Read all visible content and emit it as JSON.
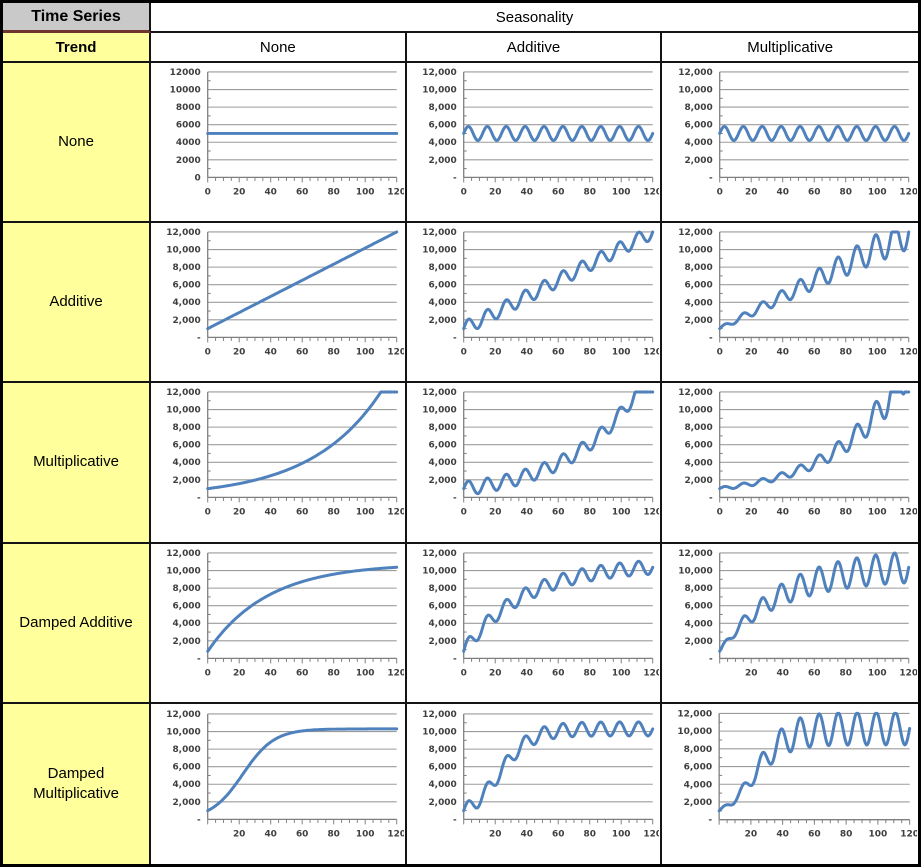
{
  "table": {
    "corner_title": "Time Series",
    "trend_label": "Trend",
    "seasonality_label": "Seasonality",
    "column_headers": [
      "None",
      "Additive",
      "Multiplicative"
    ],
    "row_headers": [
      "None",
      "Additive",
      "Multiplicative",
      "Damped Additive",
      "Damped Multiplicative"
    ]
  },
  "colors": {
    "line": "#4F81BD",
    "grid": "#9b9b9b",
    "axis": "#7f7f7f",
    "tick_text": "#3f3f3f",
    "row_header_bg": "#ffff9c",
    "corner_bg": "#c9c9c9",
    "corner_divider": "#70342f"
  },
  "chart_data": [
    {
      "type": "line",
      "trend_row": "None",
      "seasonality_col": "None",
      "xlim": [
        0,
        120
      ],
      "ylim": [
        0,
        12000
      ],
      "grid_step": 2000,
      "xticks": [
        0,
        20,
        40,
        60,
        80,
        100,
        120
      ],
      "ytick_labels": [
        "12000",
        "10000",
        "8000",
        "6000",
        "4000",
        "2000",
        "0"
      ],
      "model": {
        "trend": "none",
        "level": 5000,
        "seasonal": "none"
      },
      "keypoints": [
        [
          0,
          5000
        ],
        [
          60,
          5000
        ],
        [
          120,
          5000
        ]
      ]
    },
    {
      "type": "line",
      "trend_row": "None",
      "seasonality_col": "Additive",
      "xlim": [
        0,
        120
      ],
      "ylim": [
        0,
        12000
      ],
      "grid_step": 2000,
      "xticks": [
        0,
        20,
        40,
        60,
        80,
        100,
        120
      ],
      "ytick_labels": [
        "12,000",
        "10,000",
        "8,000",
        "6,000",
        "4,000",
        "2,000",
        "-"
      ],
      "model": {
        "trend": "none",
        "level": 5000,
        "seasonal": "additive",
        "amp": 800,
        "period": 12
      },
      "keypoints": [
        [
          0,
          5000
        ],
        [
          3,
          5800
        ],
        [
          9,
          4200
        ],
        [
          120,
          5000
        ]
      ]
    },
    {
      "type": "line",
      "trend_row": "None",
      "seasonality_col": "Multiplicative",
      "xlim": [
        0,
        120
      ],
      "ylim": [
        0,
        12000
      ],
      "grid_step": 2000,
      "xticks": [
        0,
        20,
        40,
        60,
        80,
        100,
        120
      ],
      "ytick_labels": [
        "12,000",
        "10,000",
        "8,000",
        "6,000",
        "4,000",
        "2,000",
        "-"
      ],
      "model": {
        "trend": "none",
        "level": 5000,
        "seasonal": "multiplicative",
        "frac": 0.16,
        "period": 12
      },
      "keypoints": [
        [
          0,
          5000
        ],
        [
          3,
          5800
        ],
        [
          9,
          4200
        ],
        [
          120,
          5000
        ]
      ]
    },
    {
      "type": "line",
      "trend_row": "Additive",
      "seasonality_col": "None",
      "xlim": [
        0,
        120
      ],
      "ylim": [
        0,
        12000
      ],
      "grid_step": 2000,
      "xticks": [
        0,
        20,
        40,
        60,
        80,
        100,
        120
      ],
      "ytick_labels": [
        "12,000",
        "10,000",
        "8,000",
        "6,000",
        "4,000",
        "2,000",
        "-"
      ],
      "model": {
        "trend": "linear",
        "start": 1000,
        "end": 12000,
        "seasonal": "none"
      },
      "keypoints": [
        [
          0,
          1000
        ],
        [
          60,
          6500
        ],
        [
          120,
          12000
        ]
      ]
    },
    {
      "type": "line",
      "trend_row": "Additive",
      "seasonality_col": "Additive",
      "xlim": [
        0,
        120
      ],
      "ylim": [
        0,
        12000
      ],
      "grid_step": 2000,
      "xticks": [
        0,
        20,
        40,
        60,
        80,
        100,
        120
      ],
      "ytick_labels": [
        "12,000",
        "10,000",
        "8,000",
        "6,000",
        "4,000",
        "2,000",
        "-"
      ],
      "model": {
        "trend": "linear",
        "start": 1000,
        "end": 12000,
        "seasonal": "additive",
        "amp": 800,
        "period": 12
      },
      "keypoints": [
        [
          0,
          1000
        ],
        [
          60,
          6500
        ],
        [
          117,
          12000
        ],
        [
          120,
          12000
        ]
      ]
    },
    {
      "type": "line",
      "trend_row": "Additive",
      "seasonality_col": "Multiplicative",
      "xlim": [
        0,
        120
      ],
      "ylim": [
        0,
        12000
      ],
      "grid_step": 2000,
      "xticks": [
        0,
        20,
        40,
        60,
        80,
        100,
        120
      ],
      "ytick_labels": [
        "12,000",
        "10,000",
        "8,000",
        "6,000",
        "4,000",
        "2,000",
        "-"
      ],
      "model": {
        "trend": "linear",
        "start": 1000,
        "end": 12000,
        "seasonal": "multiplicative",
        "frac": 0.16,
        "period": 12
      },
      "keypoints": [
        [
          0,
          1000
        ],
        [
          60,
          6500
        ],
        [
          99,
          12000
        ],
        [
          117,
          9700
        ]
      ]
    },
    {
      "type": "line",
      "trend_row": "Multiplicative",
      "seasonality_col": "None",
      "xlim": [
        0,
        120
      ],
      "ylim": [
        0,
        12000
      ],
      "grid_step": 2000,
      "xticks": [
        0,
        20,
        40,
        60,
        80,
        100,
        120
      ],
      "ytick_labels": [
        "12,000",
        "10,000",
        "8,000",
        "6,000",
        "4,000",
        "2,000",
        "-"
      ],
      "model": {
        "trend": "exponential",
        "start": 1000,
        "rate": 0.0226,
        "seasonal": "none"
      },
      "keypoints": [
        [
          0,
          1000
        ],
        [
          30,
          1970
        ],
        [
          60,
          3880
        ],
        [
          90,
          7640
        ],
        [
          110,
          12000
        ]
      ]
    },
    {
      "type": "line",
      "trend_row": "Multiplicative",
      "seasonality_col": "Additive",
      "xlim": [
        0,
        120
      ],
      "ylim": [
        0,
        12000
      ],
      "grid_step": 2000,
      "xticks": [
        0,
        20,
        40,
        60,
        80,
        100,
        120
      ],
      "ytick_labels": [
        "12,000",
        "10,000",
        "8,000",
        "6,000",
        "4,000",
        "2,000",
        "-"
      ],
      "model": {
        "trend": "exponential",
        "start": 1000,
        "rate": 0.0226,
        "seasonal": "additive",
        "amp": 800,
        "period": 12
      },
      "keypoints": [
        [
          0,
          1000
        ],
        [
          60,
          3880
        ],
        [
          105,
          12000
        ]
      ]
    },
    {
      "type": "line",
      "trend_row": "Multiplicative",
      "seasonality_col": "Multiplicative",
      "xlim": [
        0,
        120
      ],
      "ylim": [
        0,
        12000
      ],
      "grid_step": 2000,
      "xticks": [
        0,
        20,
        40,
        60,
        80,
        100,
        120
      ],
      "ytick_labels": [
        "12,000",
        "10,000",
        "8,000",
        "6,000",
        "4,000",
        "2,000",
        "-"
      ],
      "model": {
        "trend": "exponential",
        "start": 1000,
        "rate": 0.0226,
        "seasonal": "multiplicative",
        "frac": 0.16,
        "period": 12
      },
      "keypoints": [
        [
          0,
          1000
        ],
        [
          60,
          3880
        ],
        [
          103,
          12000
        ],
        [
          117,
          9800
        ]
      ]
    },
    {
      "type": "line",
      "trend_row": "Damped Additive",
      "seasonality_col": "None",
      "xlim": [
        0,
        120
      ],
      "ylim": [
        0,
        12000
      ],
      "grid_step": 2000,
      "xticks": [
        0,
        20,
        40,
        60,
        80,
        100,
        120
      ],
      "ytick_labels": [
        "12,000",
        "10,000",
        "8,000",
        "6,000",
        "4,000",
        "2,000",
        "-"
      ],
      "model": {
        "trend": "damped-additive",
        "limit": 10800,
        "start": 800,
        "tau": 38,
        "seasonal": "none"
      },
      "keypoints": [
        [
          0,
          800
        ],
        [
          40,
          7310
        ],
        [
          80,
          9580
        ],
        [
          120,
          10380
        ]
      ]
    },
    {
      "type": "line",
      "trend_row": "Damped Additive",
      "seasonality_col": "Additive",
      "xlim": [
        0,
        120
      ],
      "ylim": [
        0,
        12000
      ],
      "grid_step": 2000,
      "xticks": [
        0,
        20,
        40,
        60,
        80,
        100,
        120
      ],
      "ytick_labels": [
        "12,000",
        "10,000",
        "8,000",
        "6,000",
        "4,000",
        "2,000",
        "-"
      ],
      "model": {
        "trend": "damped-additive",
        "limit": 10800,
        "start": 800,
        "tau": 38,
        "seasonal": "additive",
        "amp": 800,
        "period": 12
      },
      "keypoints": [
        [
          0,
          800
        ],
        [
          40,
          7310
        ],
        [
          80,
          9580
        ],
        [
          120,
          10380
        ]
      ]
    },
    {
      "type": "line",
      "trend_row": "Damped Additive",
      "seasonality_col": "Multiplicative",
      "xlim": [
        0,
        120
      ],
      "ylim": [
        0,
        12000
      ],
      "grid_step": 2000,
      "xticks": [
        20,
        40,
        60,
        80,
        100,
        120
      ],
      "ytick_labels": [
        "12,000",
        "10,000",
        "8,000",
        "6,000",
        "4,000",
        "2,000",
        "-"
      ],
      "model": {
        "trend": "damped-additive",
        "limit": 10800,
        "start": 800,
        "tau": 38,
        "seasonal": "multiplicative",
        "frac": 0.17,
        "period": 12
      },
      "keypoints": [
        [
          0,
          800
        ],
        [
          40,
          7310
        ],
        [
          80,
          9580
        ],
        [
          117,
          8600
        ],
        [
          111,
          12000
        ]
      ]
    },
    {
      "type": "line",
      "trend_row": "Damped Multiplicative",
      "seasonality_col": "None",
      "xlim": [
        0,
        120
      ],
      "ylim": [
        0,
        12000
      ],
      "grid_step": 2000,
      "xticks": [
        20,
        40,
        60,
        80,
        100,
        120
      ],
      "ytick_labels": [
        "12,000",
        "10,000",
        "8,000",
        "6,000",
        "4,000",
        "2,000",
        "-"
      ],
      "model": {
        "trend": "damped-multiplicative",
        "limit": 10300,
        "a": 9.3,
        "b": 0.1,
        "seasonal": "none"
      },
      "keypoints": [
        [
          0,
          1000
        ],
        [
          20,
          4560
        ],
        [
          40,
          8800
        ],
        [
          60,
          10070
        ],
        [
          120,
          10300
        ]
      ]
    },
    {
      "type": "line",
      "trend_row": "Damped Multiplicative",
      "seasonality_col": "Additive",
      "xlim": [
        0,
        120
      ],
      "ylim": [
        0,
        12000
      ],
      "grid_step": 2000,
      "xticks": [
        20,
        40,
        60,
        80,
        100,
        120
      ],
      "ytick_labels": [
        "12,000",
        "10,000",
        "8,000",
        "6,000",
        "4,000",
        "2,000",
        "-"
      ],
      "model": {
        "trend": "damped-multiplicative",
        "limit": 10300,
        "a": 9.3,
        "b": 0.1,
        "seasonal": "additive",
        "amp": 800,
        "period": 12
      },
      "keypoints": [
        [
          0,
          1000
        ],
        [
          20,
          4560
        ],
        [
          40,
          8800
        ],
        [
          120,
          10300
        ]
      ]
    },
    {
      "type": "line",
      "trend_row": "Damped Multiplicative",
      "seasonality_col": "Multiplicative",
      "xlim": [
        0,
        120
      ],
      "ylim": [
        0,
        12000
      ],
      "grid_step": 2000,
      "xticks": [
        20,
        40,
        60,
        80,
        100,
        120
      ],
      "ytick_labels": [
        "12,000",
        "10,000",
        "8,000",
        "6,000",
        "4,000",
        "2,000",
        "-"
      ],
      "model": {
        "trend": "damped-multiplicative",
        "limit": 10300,
        "a": 9.3,
        "b": 0.1,
        "seasonal": "multiplicative",
        "frac": 0.18,
        "period": 12
      },
      "keypoints": [
        [
          0,
          1000
        ],
        [
          20,
          4560
        ],
        [
          40,
          8800
        ],
        [
          111,
          11900
        ],
        [
          117,
          8300
        ]
      ]
    }
  ]
}
